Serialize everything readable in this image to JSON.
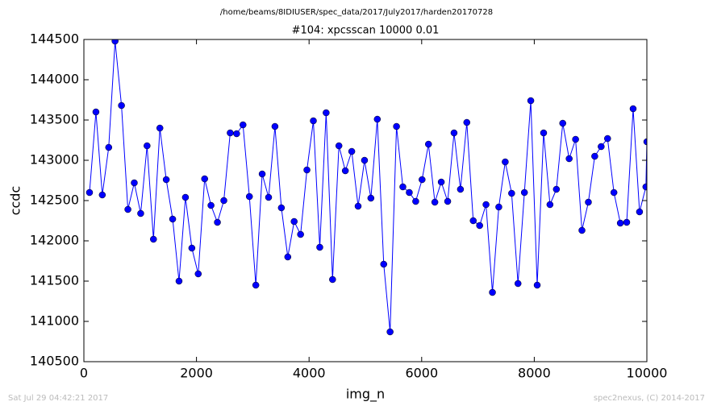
{
  "chart_data": {
    "type": "line",
    "suptitle": "/home/beams/8IDIUSER/spec_data/2017/July2017/harden20170728",
    "title": "#104: xpcsscan 10000 0.01",
    "x_label": "img_n",
    "y_label": "ccdc",
    "footer_left": "Sat Jul 29 04:42:21 2017",
    "footer_right": "spec2nexus, (C) 2014-2017",
    "x": [
      100,
      214,
      327,
      441,
      554,
      668,
      782,
      895,
      1009,
      1122,
      1236,
      1350,
      1463,
      1577,
      1690,
      1804,
      1918,
      2031,
      2145,
      2258,
      2372,
      2486,
      2599,
      2713,
      2826,
      2940,
      3054,
      3167,
      3281,
      3394,
      3508,
      3622,
      3735,
      3849,
      3962,
      4076,
      4190,
      4303,
      4417,
      4530,
      4644,
      4758,
      4871,
      4985,
      5098,
      5212,
      5326,
      5439,
      5553,
      5666,
      5780,
      5894,
      6007,
      6121,
      6234,
      6348,
      6462,
      6575,
      6689,
      6802,
      6916,
      7030,
      7143,
      7257,
      7370,
      7484,
      7598,
      7711,
      7825,
      7938,
      8052,
      8166,
      8279,
      8393,
      8506,
      8620,
      8734,
      8847,
      8961,
      9074,
      9188,
      9302,
      9415,
      9529,
      9642,
      9756,
      9870,
      9983,
      10000
    ],
    "values": [
      142600,
      143600,
      142570,
      143160,
      144480,
      143680,
      142390,
      142720,
      142340,
      143180,
      142020,
      143400,
      142760,
      142270,
      141500,
      142540,
      141910,
      141590,
      142770,
      142440,
      142230,
      142500,
      143340,
      143330,
      143440,
      142550,
      141450,
      142830,
      142540,
      143420,
      142410,
      141800,
      142240,
      142080,
      142880,
      143490,
      141920,
      143590,
      141520,
      143180,
      142870,
      143110,
      142430,
      143000,
      142530,
      143510,
      141710,
      140870,
      143420,
      142670,
      142600,
      142490,
      142760,
      143200,
      142480,
      142730,
      142490,
      143340,
      142640,
      143470,
      142250,
      142190,
      142450,
      141360,
      142420,
      142980,
      142590,
      141470,
      142600,
      143740,
      141450,
      143340,
      142450,
      142640,
      143460,
      143020,
      143260,
      142130,
      142480,
      143050,
      143170,
      143270,
      142600,
      142220,
      142230,
      143640,
      142360,
      142670,
      143230
    ],
    "color": "#0000ff",
    "xlim": [
      0,
      10000
    ],
    "xticks": [
      0,
      2000,
      4000,
      6000,
      8000,
      10000
    ],
    "ylim": [
      140500,
      144500
    ],
    "yticks": [
      140500,
      141000,
      141500,
      142000,
      142500,
      143000,
      143500,
      144000,
      144500
    ],
    "grid": false
  }
}
